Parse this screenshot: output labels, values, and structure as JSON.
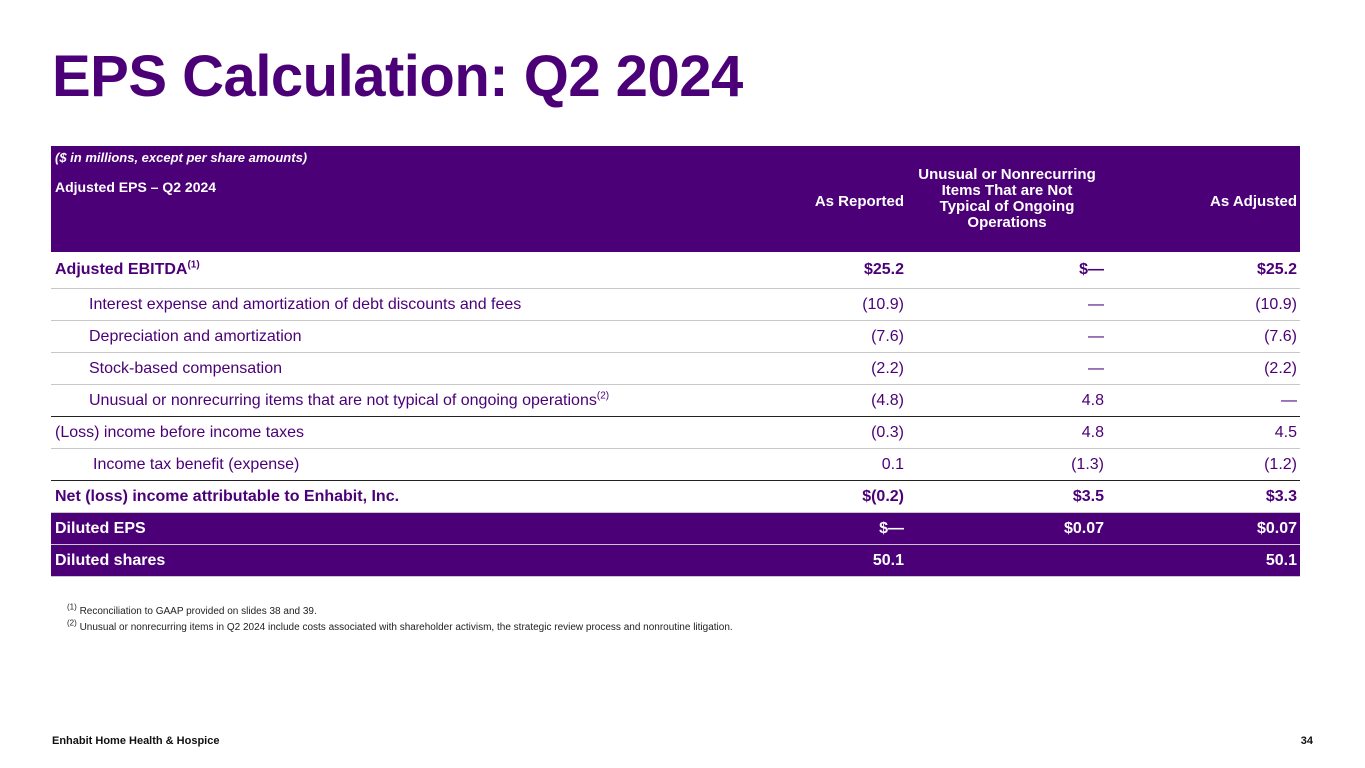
{
  "slide": {
    "title": "EPS Calculation: Q2 2024",
    "footer_left": "Enhabit Home Health & Hospice",
    "page_number": "34"
  },
  "table": {
    "unit_note": "($ in millions, except per share amounts)",
    "section_label": "Adjusted EPS – Q2 2024",
    "columns": {
      "reported": "As Reported",
      "unusual": "Unusual or Nonrecurring Items That are Not Typical of Ongoing Operations",
      "adjusted": "As Adjusted"
    },
    "rows": [
      {
        "label": "Adjusted EBITDA",
        "sup": "(1)",
        "reported": "$25.2",
        "unusual": "$—",
        "adjusted": "$25.2"
      },
      {
        "label": "Interest expense and amortization of debt discounts and fees",
        "reported": "(10.9)",
        "unusual": "—",
        "adjusted": "(10.9)"
      },
      {
        "label": "Depreciation and amortization",
        "reported": "(7.6)",
        "unusual": "—",
        "adjusted": "(7.6)"
      },
      {
        "label": "Stock-based compensation",
        "reported": "(2.2)",
        "unusual": "—",
        "adjusted": "(2.2)"
      },
      {
        "label": "Unusual or nonrecurring items that are not typical of ongoing operations",
        "sup": "(2)",
        "reported": "(4.8)",
        "unusual": "4.8",
        "adjusted": "—"
      },
      {
        "label": "(Loss) income before income taxes",
        "reported": "(0.3)",
        "unusual": "4.8",
        "adjusted": "4.5"
      },
      {
        "label": "Income tax benefit (expense)",
        "reported": "0.1",
        "unusual": "(1.3)",
        "adjusted": "(1.2)"
      },
      {
        "label": "Net (loss) income attributable to Enhabit, Inc.",
        "reported": "$(0.2)",
        "unusual": "$3.5",
        "adjusted": "$3.3"
      },
      {
        "label": "Diluted EPS",
        "reported": "$—",
        "unusual": "$0.07",
        "adjusted": "$0.07"
      },
      {
        "label": "Diluted shares",
        "reported": "50.1",
        "unusual": "",
        "adjusted": "50.1"
      }
    ]
  },
  "footnotes": [
    {
      "marker": "(1)",
      "text": "Reconciliation to GAAP provided on slides 38 and 39."
    },
    {
      "marker": "(2)",
      "text": "Unusual or nonrecurring items in Q2 2024 include costs associated with shareholder activism, the strategic review process and nonroutine litigation."
    }
  ],
  "colors": {
    "brand_purple": "#4b0078",
    "text_dark": "#222222"
  }
}
